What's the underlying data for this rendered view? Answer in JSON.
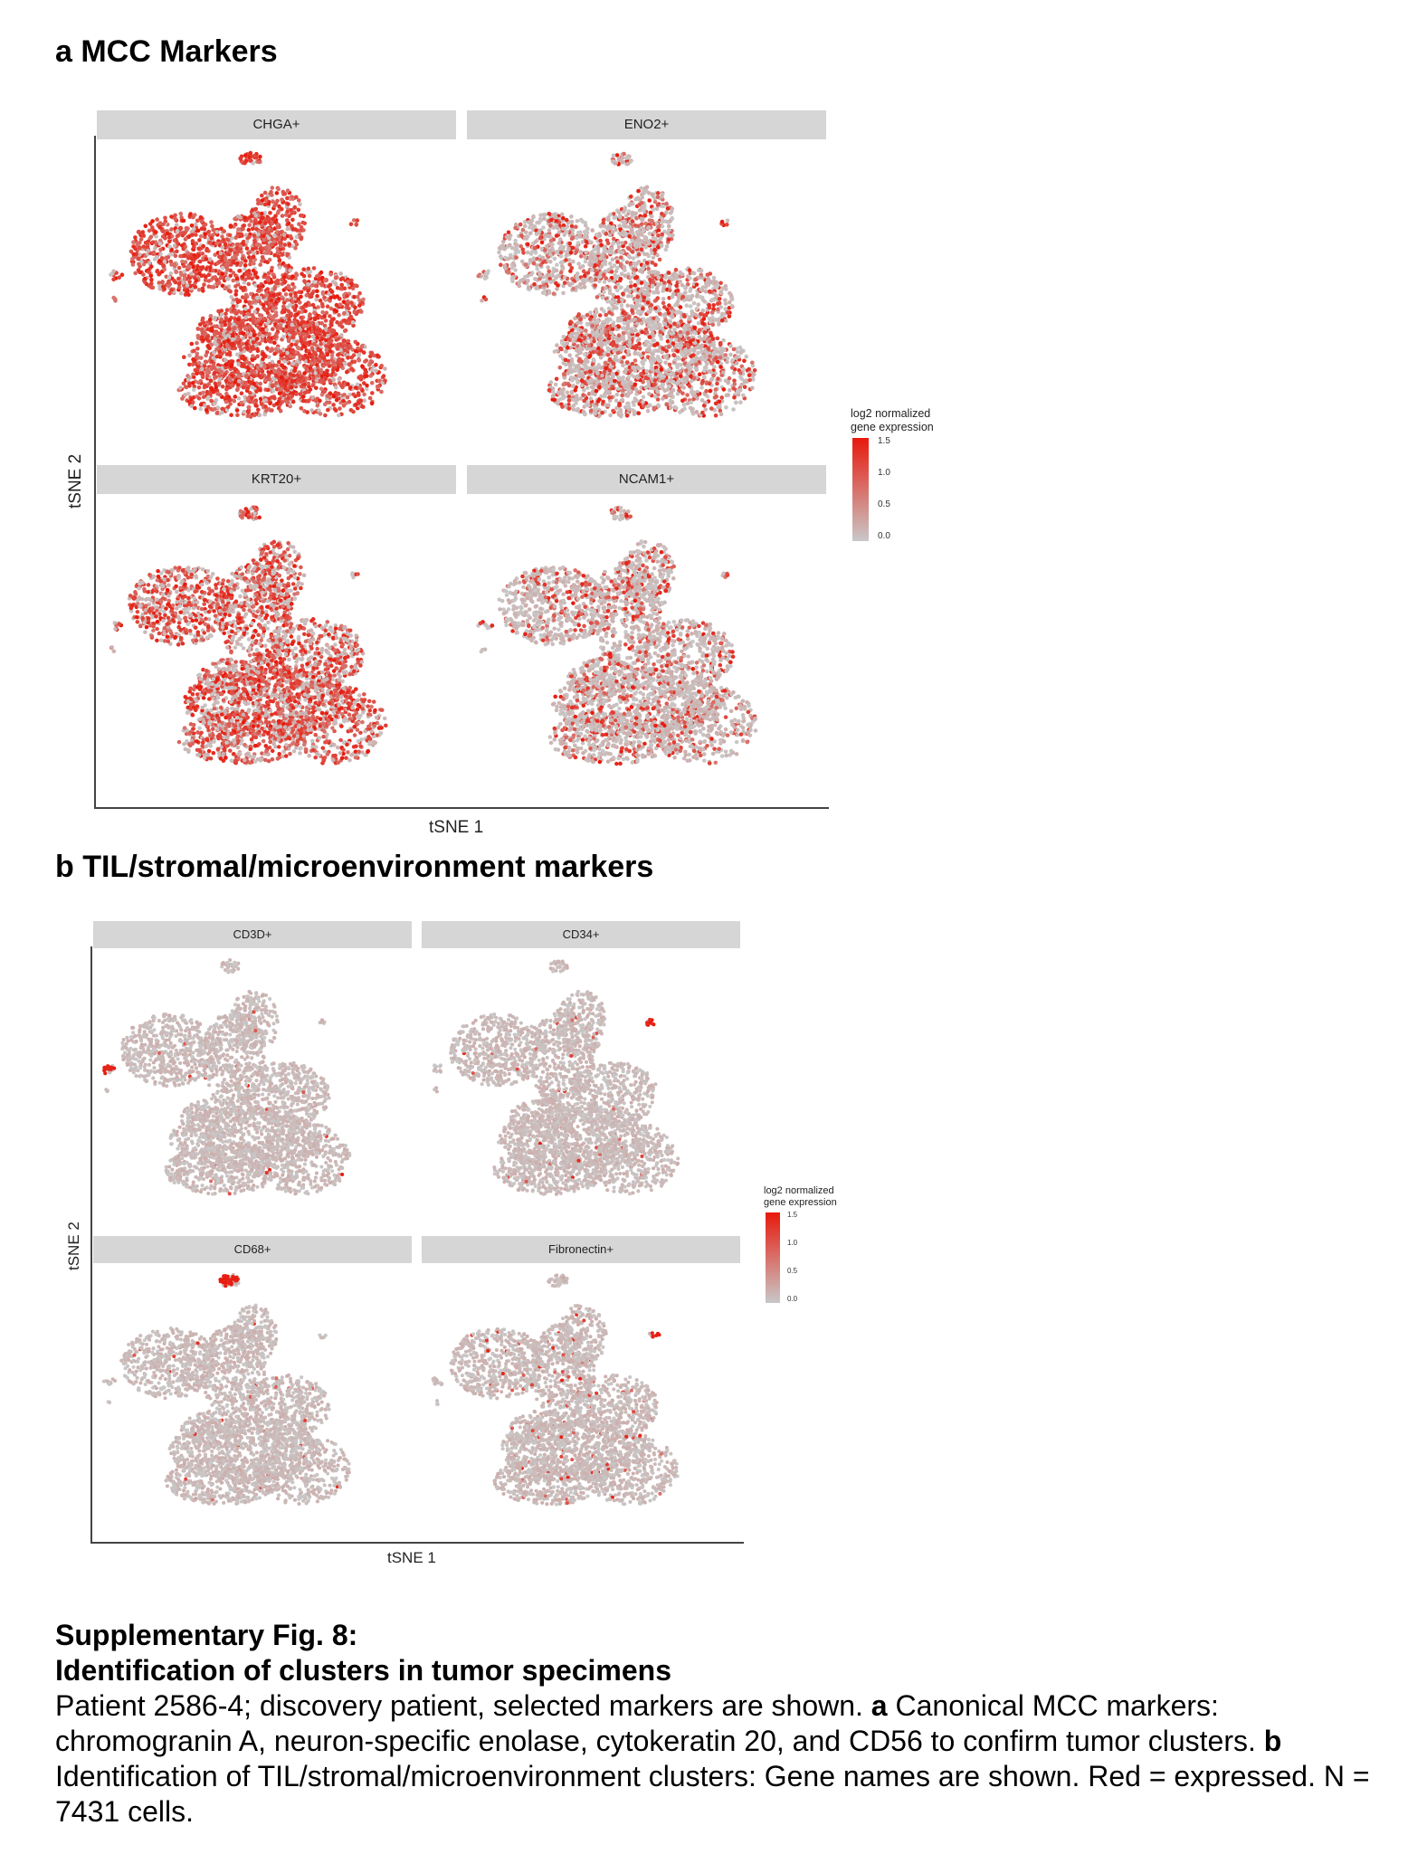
{
  "figure": {
    "panel_a": {
      "title": "a MCC Markers",
      "xlabel": "tSNE 1",
      "ylabel": "tSNE 2",
      "facets": [
        {
          "label": "CHGA+",
          "expression_level": 0.85
        },
        {
          "label": "ENO2+",
          "expression_level": 0.35
        },
        {
          "label": "KRT20+",
          "expression_level": 0.62
        },
        {
          "label": "NCAM1+",
          "expression_level": 0.25
        }
      ],
      "legend": {
        "title_line1": "log2 normalized",
        "title_line2": "gene expression",
        "ticks": [
          "1.5",
          "1.0",
          "0.5",
          "0.0"
        ]
      }
    },
    "panel_b": {
      "title": "b TIL/stromal/microenvironment markers",
      "xlabel": "tSNE 1",
      "ylabel": "tSNE 2",
      "facets": [
        {
          "label": "CD3D+",
          "expression_level": 0.01,
          "highlight": "left_islet"
        },
        {
          "label": "CD34+",
          "expression_level": 0.01,
          "highlight": "right_islet"
        },
        {
          "label": "CD68+",
          "expression_level": 0.01,
          "highlight": "top_islet"
        },
        {
          "label": "Fibronectin+",
          "expression_level": 0.03,
          "highlight": "top_right"
        }
      ],
      "legend": {
        "title_line1": "log2 normalized",
        "title_line2": "gene expression",
        "ticks": [
          "1.5",
          "1.0",
          "0.5",
          "0.0"
        ]
      }
    },
    "colors": {
      "low": "#c8c8c8",
      "high": "#e8190c",
      "strip": "#d6d6d6"
    }
  },
  "caption": {
    "heading_line1": "Supplementary Fig. 8:",
    "heading_line2": "Identification of clusters in tumor specimens",
    "text_1": "Patient 2586-4; discovery patient,  selected markers are shown. ",
    "bold_a": "a",
    "text_2": " Canonical MCC markers: chromogranin A, neuron-specific enolase, cytokeratin 20, and CD56 to confirm tumor clusters. ",
    "bold_b": "b",
    "text_3": " Identification of TIL/stromal/microenvironment clusters: Gene names are shown. Red = expressed. N = 7431 cells."
  }
}
